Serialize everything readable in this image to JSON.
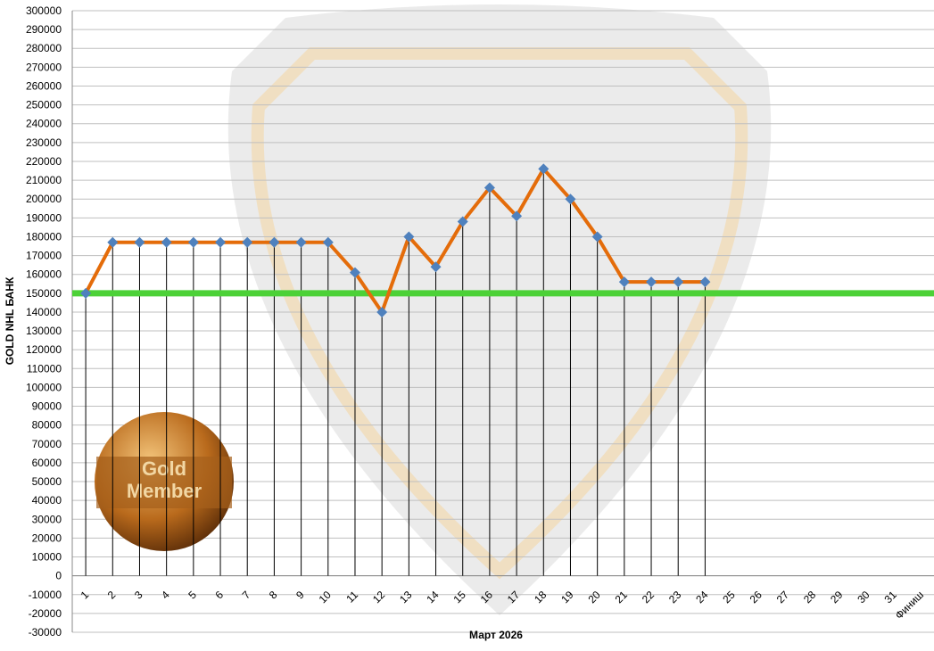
{
  "chart_data": {
    "type": "line",
    "x_label": "Март 2026",
    "y_label": "GOLD NHL БАНК",
    "categories": [
      "1",
      "2",
      "3",
      "4",
      "5",
      "6",
      "7",
      "8",
      "9",
      "10",
      "11",
      "12",
      "13",
      "14",
      "15",
      "16",
      "17",
      "18",
      "19",
      "20",
      "21",
      "22",
      "23",
      "24",
      "25",
      "26",
      "27",
      "28",
      "29",
      "30",
      "31",
      "Финиш"
    ],
    "series": [
      {
        "color": "#e46c0a",
        "marker_color": "#4f81bd",
        "values": [
          150000,
          177000,
          177000,
          177000,
          177000,
          177000,
          177000,
          177000,
          177000,
          177000,
          161000,
          140000,
          180000,
          164000,
          188000,
          206000,
          191000,
          216000,
          200000,
          180000,
          156000,
          156000,
          156000,
          156000,
          null,
          null,
          null,
          null,
          null,
          null,
          null,
          null
        ]
      }
    ],
    "reference_line": {
      "value": 150000,
      "color": "#4cd137"
    },
    "ylim": [
      -30000,
      300000
    ],
    "yticks": [
      -30000,
      -20000,
      -10000,
      0,
      10000,
      20000,
      30000,
      40000,
      50000,
      60000,
      70000,
      80000,
      90000,
      100000,
      110000,
      120000,
      130000,
      140000,
      150000,
      160000,
      170000,
      180000,
      190000,
      200000,
      210000,
      220000,
      230000,
      240000,
      250000,
      260000,
      270000,
      280000,
      290000,
      300000
    ],
    "grid": true,
    "badge": [
      "Gold",
      "Member"
    ]
  }
}
